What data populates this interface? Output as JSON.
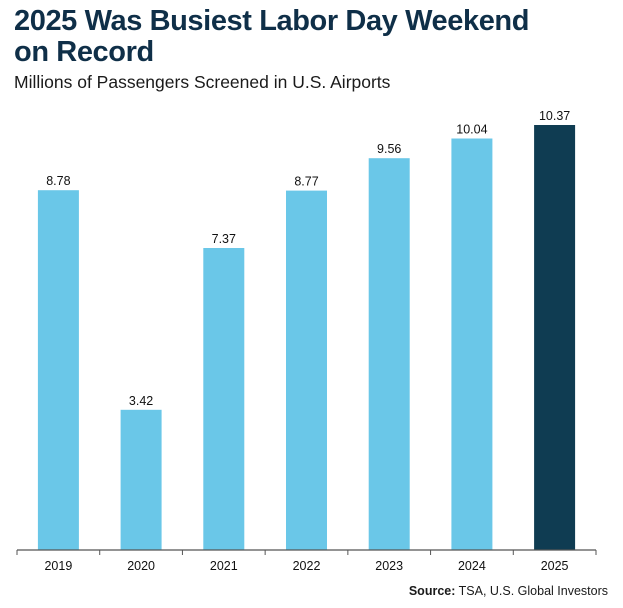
{
  "chart_data": {
    "type": "bar",
    "title": "2025 Was Busiest Labor Day Weekend on Record",
    "subtitle": "Millions of Passengers Screened in U.S. Airports",
    "categories": [
      "2019",
      "2020",
      "2021",
      "2022",
      "2023",
      "2024",
      "2025"
    ],
    "values": [
      8.78,
      3.42,
      7.37,
      8.77,
      9.56,
      10.04,
      10.37
    ],
    "data_labels": [
      "8.78",
      "3.42",
      "7.37",
      "8.77",
      "9.56",
      "10.04",
      "10.37"
    ],
    "highlight_category": "2025",
    "xlabel": "",
    "ylabel": "",
    "ylim": [
      0,
      10.37
    ],
    "grid": false,
    "legend": "none",
    "colors": {
      "bar": "#6ac7e8",
      "highlight": "#0f3c52",
      "title": "#0f2f48",
      "axis": "#555555"
    }
  },
  "source": {
    "label": "Source:",
    "text": " TSA, U.S. Global Investors"
  }
}
